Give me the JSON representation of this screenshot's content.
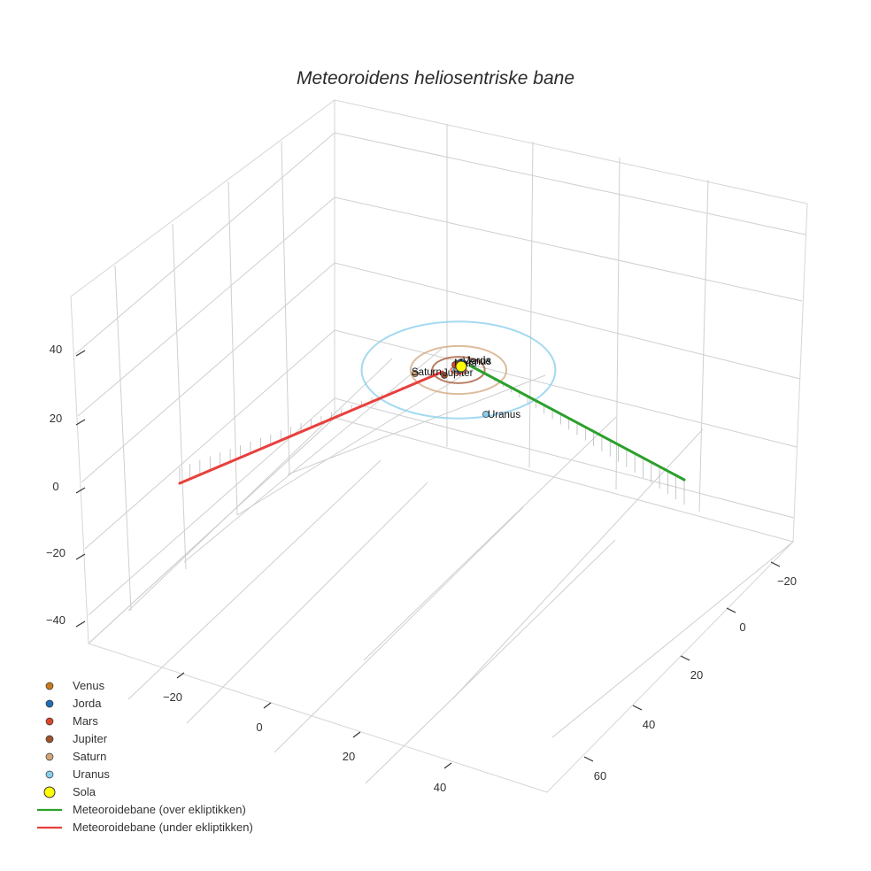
{
  "chart_data": {
    "type": "scatter3d",
    "title": "Meteoroidens heliosentriske bane",
    "axes": {
      "x": {
        "ticks": [
          "−20",
          "0",
          "20",
          "40"
        ],
        "tick_values": [
          -20,
          0,
          20,
          40
        ]
      },
      "y": {
        "ticks": [
          "−20",
          "0",
          "20",
          "40",
          "60"
        ],
        "tick_values": [
          -20,
          0,
          20,
          40,
          60
        ]
      },
      "z": {
        "ticks": [
          "−40",
          "−20",
          "0",
          "20",
          "40"
        ],
        "tick_values": [
          -40,
          -20,
          0,
          20,
          40
        ]
      }
    },
    "grid": true,
    "planets": [
      {
        "name": "Venus",
        "color": "#c97a1e",
        "orbit_radius": 0.72,
        "label": "Venus"
      },
      {
        "name": "Jorda",
        "color": "#1f6fb4",
        "orbit_radius": 1.0,
        "label": "Jorda"
      },
      {
        "name": "Mars",
        "color": "#d9472b",
        "orbit_radius": 1.52,
        "label": "Mars"
      },
      {
        "name": "Jupiter",
        "color": "#a0522d",
        "orbit_radius": 5.2,
        "label": "Jupiter"
      },
      {
        "name": "Saturn",
        "color": "#d2a679",
        "orbit_radius": 9.5,
        "label": "Saturn"
      },
      {
        "name": "Uranus",
        "color": "#87ceeb",
        "orbit_radius": 19.2,
        "label": "Uranus"
      }
    ],
    "sun": {
      "name": "Sola",
      "color": "#ffff00"
    },
    "trajectory": [
      {
        "name": "Meteoroidebane (over ekliptikken)",
        "color": "#2ca02c",
        "start": [
          52,
          45,
          9
        ],
        "end": [
          0,
          0,
          0
        ]
      },
      {
        "name": "Meteoroidebane (under ekliptikken)",
        "color": "#e8403d",
        "start": [
          -15,
          55,
          -8
        ],
        "end": [
          0,
          0,
          0
        ]
      }
    ],
    "legend": {
      "position": "bottom-left",
      "items": [
        {
          "label": "Venus",
          "kind": "marker",
          "color": "#c97a1e"
        },
        {
          "label": "Jorda",
          "kind": "marker",
          "color": "#1f6fb4"
        },
        {
          "label": "Mars",
          "kind": "marker",
          "color": "#d9472b"
        },
        {
          "label": "Jupiter",
          "kind": "marker",
          "color": "#a0522d"
        },
        {
          "label": "Saturn",
          "kind": "marker",
          "color": "#d2a679"
        },
        {
          "label": "Uranus",
          "kind": "marker",
          "color": "#87ceeb"
        },
        {
          "label": "Sola",
          "kind": "sun",
          "color": "#ffff00"
        },
        {
          "label": "Meteoroidebane (over ekliptikken)",
          "kind": "line",
          "color": "#2ca02c"
        },
        {
          "label": "Meteoroidebane (under ekliptikken)",
          "kind": "line",
          "color": "#e8403d"
        }
      ]
    }
  }
}
